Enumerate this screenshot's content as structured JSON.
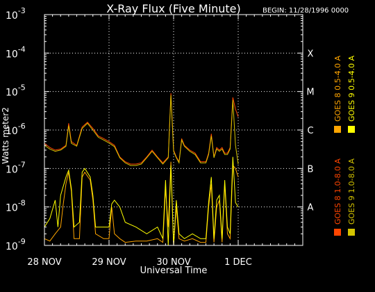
{
  "chart_data": {
    "type": "line",
    "title": "X-Ray Flux (Five Minute)",
    "begin_label": "BEGIN: 11/28/1996 0000",
    "xlabel": "Universal Time",
    "ylabel": "Watts meter2",
    "y_scale": "log",
    "ylim": [
      1e-09,
      0.001
    ],
    "y_ticks": [
      {
        "value": 1e-09,
        "base": "10",
        "exp": "-9"
      },
      {
        "value": 1e-08,
        "base": "10",
        "exp": "-8"
      },
      {
        "value": 1e-07,
        "base": "10",
        "exp": "-7"
      },
      {
        "value": 1e-06,
        "base": "10",
        "exp": "-6"
      },
      {
        "value": 1e-05,
        "base": "10",
        "exp": "-5"
      },
      {
        "value": 0.0001,
        "base": "10",
        "exp": "-4"
      },
      {
        "value": 0.001,
        "base": "10",
        "exp": "-3"
      }
    ],
    "xlim": [
      0,
      96
    ],
    "x_units": "hours since 28 NOV 1996 00:00 UT",
    "x_ticks": [
      {
        "value": 0,
        "label": "28 NOV"
      },
      {
        "value": 24,
        "label": "29 NOV"
      },
      {
        "value": 48,
        "label": "30 NOV"
      },
      {
        "value": 72,
        "label": "1 DEC"
      }
    ],
    "flare_classes": [
      {
        "label": "A",
        "value": 1e-08
      },
      {
        "label": "B",
        "value": 1e-07
      },
      {
        "label": "C",
        "value": 1e-06
      },
      {
        "label": "M",
        "value": 1e-05
      },
      {
        "label": "X",
        "value": 0.0001
      }
    ],
    "grid": true,
    "legend_position": "right, vertical",
    "series": [
      {
        "name": "GOES 8 1.0-8.0 A",
        "color": "#ff4500",
        "points": [
          [
            0,
            4.5e-07
          ],
          [
            2,
            3.5e-07
          ],
          [
            4,
            3e-07
          ],
          [
            6,
            3.2e-07
          ],
          [
            8,
            4e-07
          ],
          [
            9,
            1.5e-06
          ],
          [
            10,
            5e-07
          ],
          [
            12,
            4e-07
          ],
          [
            14,
            1.2e-06
          ],
          [
            16,
            1.6e-06
          ],
          [
            18,
            1.1e-06
          ],
          [
            20,
            7e-07
          ],
          [
            22,
            6e-07
          ],
          [
            24,
            5e-07
          ],
          [
            26,
            4e-07
          ],
          [
            28,
            2e-07
          ],
          [
            30,
            1.5e-07
          ],
          [
            32,
            1.3e-07
          ],
          [
            34,
            1.3e-07
          ],
          [
            36,
            1.4e-07
          ],
          [
            38,
            2e-07
          ],
          [
            40,
            3e-07
          ],
          [
            42,
            2e-07
          ],
          [
            44,
            1.4e-07
          ],
          [
            46,
            2e-07
          ],
          [
            47,
            9e-06
          ],
          [
            48,
            3e-07
          ],
          [
            49,
            2e-07
          ],
          [
            50,
            1.5e-07
          ],
          [
            51,
            6e-07
          ],
          [
            52,
            4e-07
          ],
          [
            54,
            3e-07
          ],
          [
            56,
            2.5e-07
          ],
          [
            58,
            1.5e-07
          ],
          [
            60,
            1.5e-07
          ],
          [
            61,
            2.5e-07
          ],
          [
            62,
            8e-07
          ],
          [
            63,
            2e-07
          ],
          [
            64,
            3.5e-07
          ],
          [
            65,
            3e-07
          ],
          [
            66,
            3.5e-07
          ],
          [
            67,
            2.5e-07
          ],
          [
            68,
            2.5e-07
          ],
          [
            69,
            3.5e-07
          ],
          [
            70,
            7e-06
          ],
          [
            71,
            3.5e-06
          ],
          [
            72,
            2.2e-06
          ]
        ]
      },
      {
        "name": "GOES 8 0.5-4.0 A",
        "color": "#ffa500",
        "points": [
          [
            0,
            1.5e-09
          ],
          [
            2,
            1.3e-09
          ],
          [
            4,
            2e-09
          ],
          [
            6,
            3e-09
          ],
          [
            7,
            1.2e-08
          ],
          [
            8,
            4e-08
          ],
          [
            9,
            8e-08
          ],
          [
            10,
            2.5e-08
          ],
          [
            11,
            1.5e-09
          ],
          [
            13,
            1.5e-09
          ],
          [
            14,
            6e-08
          ],
          [
            15,
            8e-08
          ],
          [
            17,
            5e-08
          ],
          [
            18,
            1.5e-08
          ],
          [
            19,
            2e-09
          ],
          [
            22,
            1.5e-09
          ],
          [
            24,
            1.5e-09
          ],
          [
            25,
            1e-08
          ],
          [
            26,
            2e-09
          ],
          [
            28,
            1.5e-09
          ],
          [
            30,
            1.2e-09
          ],
          [
            34,
            1.3e-09
          ],
          [
            38,
            1.3e-09
          ],
          [
            42,
            1.5e-09
          ],
          [
            44,
            1.2e-09
          ],
          [
            45,
            3e-08
          ],
          [
            46,
            3e-09
          ],
          [
            47,
            1.5e-07
          ],
          [
            48,
            1e-09
          ],
          [
            49,
            1e-08
          ],
          [
            50,
            1.5e-09
          ],
          [
            52,
            1.3e-09
          ],
          [
            55,
            1.5e-09
          ],
          [
            58,
            1.2e-09
          ],
          [
            60,
            1.2e-09
          ],
          [
            61,
            1e-08
          ],
          [
            62,
            4e-08
          ],
          [
            63,
            1.2e-09
          ],
          [
            64,
            1e-08
          ],
          [
            65,
            1.5e-08
          ],
          [
            66,
            1.2e-09
          ],
          [
            67,
            4e-08
          ],
          [
            68,
            2e-09
          ],
          [
            69,
            1.5e-09
          ],
          [
            70,
            1.2e-07
          ],
          [
            71,
            1e-07
          ],
          [
            72,
            6e-08
          ]
        ]
      },
      {
        "name": "GOES 9 1.0-8.0 A",
        "color": "#d4c400",
        "points": [
          [
            0,
            4e-07
          ],
          [
            2,
            3.2e-07
          ],
          [
            4,
            2.8e-07
          ],
          [
            6,
            3e-07
          ],
          [
            8,
            3.8e-07
          ],
          [
            9,
            1.3e-06
          ],
          [
            10,
            4.5e-07
          ],
          [
            12,
            3.8e-07
          ],
          [
            14,
            1.1e-06
          ],
          [
            16,
            1.5e-06
          ],
          [
            18,
            1e-06
          ],
          [
            20,
            6.5e-07
          ],
          [
            22,
            5.5e-07
          ],
          [
            24,
            4.6e-07
          ],
          [
            26,
            3.7e-07
          ],
          [
            28,
            1.9e-07
          ],
          [
            30,
            1.4e-07
          ],
          [
            32,
            1.2e-07
          ],
          [
            34,
            1.2e-07
          ],
          [
            36,
            1.3e-07
          ],
          [
            38,
            1.9e-07
          ],
          [
            40,
            2.8e-07
          ],
          [
            42,
            1.9e-07
          ],
          [
            44,
            1.3e-07
          ],
          [
            46,
            1.9e-07
          ],
          [
            47,
            8e-06
          ],
          [
            48,
            2.8e-07
          ],
          [
            49,
            1.9e-07
          ],
          [
            50,
            1.4e-07
          ],
          [
            51,
            5.5e-07
          ],
          [
            52,
            3.8e-07
          ],
          [
            54,
            2.8e-07
          ],
          [
            56,
            2.3e-07
          ],
          [
            58,
            1.4e-07
          ],
          [
            60,
            1.4e-07
          ],
          [
            61,
            2.3e-07
          ],
          [
            62,
            7e-07
          ],
          [
            63,
            1.9e-07
          ],
          [
            64,
            3.2e-07
          ],
          [
            65,
            2.8e-07
          ],
          [
            66,
            3.2e-07
          ],
          [
            67,
            2.3e-07
          ],
          [
            68,
            2.3e-07
          ],
          [
            69,
            3.2e-07
          ],
          [
            70,
            6e-06
          ],
          [
            71,
            4e-07
          ],
          [
            72,
            1.3e-07
          ]
        ]
      },
      {
        "name": "GOES 9 0.5-4.0 A",
        "color": "#ffff00",
        "points": [
          [
            0,
            3e-09
          ],
          [
            2,
            5e-09
          ],
          [
            4,
            1.5e-08
          ],
          [
            5,
            3e-09
          ],
          [
            6,
            2e-08
          ],
          [
            8,
            6e-08
          ],
          [
            9,
            9e-08
          ],
          [
            10,
            3e-08
          ],
          [
            11,
            3e-09
          ],
          [
            13,
            4e-09
          ],
          [
            14,
            8e-08
          ],
          [
            15,
            1e-07
          ],
          [
            17,
            6e-08
          ],
          [
            18,
            2e-08
          ],
          [
            19,
            3e-09
          ],
          [
            22,
            3e-09
          ],
          [
            24,
            3e-09
          ],
          [
            25,
            1.2e-08
          ],
          [
            26,
            1.5e-08
          ],
          [
            28,
            1e-08
          ],
          [
            30,
            4e-09
          ],
          [
            34,
            3e-09
          ],
          [
            38,
            2e-09
          ],
          [
            42,
            3e-09
          ],
          [
            44,
            1.5e-09
          ],
          [
            45,
            5e-08
          ],
          [
            46,
            1e-09
          ],
          [
            47,
            1.2e-07
          ],
          [
            48,
            1e-09
          ],
          [
            49,
            1.5e-08
          ],
          [
            50,
            2e-09
          ],
          [
            52,
            1.5e-09
          ],
          [
            55,
            2e-09
          ],
          [
            58,
            1.5e-09
          ],
          [
            60,
            1.5e-09
          ],
          [
            61,
            1.3e-08
          ],
          [
            62,
            6e-08
          ],
          [
            63,
            1.5e-09
          ],
          [
            64,
            1.5e-08
          ],
          [
            65,
            2e-08
          ],
          [
            66,
            1.5e-09
          ],
          [
            67,
            5e-08
          ],
          [
            68,
            3e-09
          ],
          [
            69,
            2e-09
          ],
          [
            70,
            2e-07
          ],
          [
            71,
            1.3e-08
          ],
          [
            72,
            1e-08
          ]
        ]
      }
    ]
  }
}
